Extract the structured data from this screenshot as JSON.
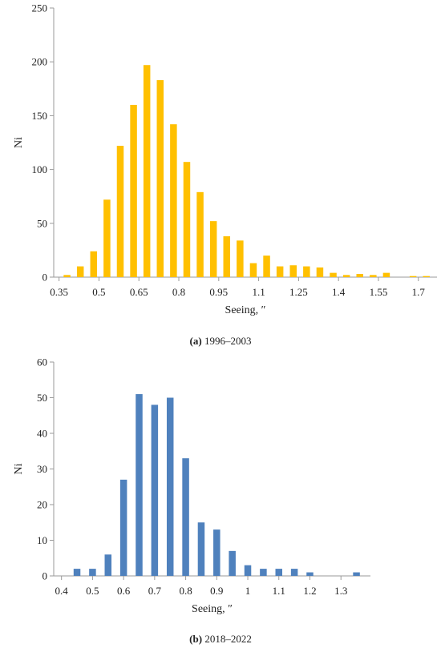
{
  "figure": {
    "caption_a_letter": "(a)",
    "caption_a_text": "1996–2003",
    "caption_b_letter": "(b)",
    "caption_b_text": "2018–2022"
  },
  "chart_data": [
    {
      "type": "bar",
      "panel": "a",
      "color": "#FFC000",
      "xlabel": "Seeing, ″",
      "ylabel": "Ni",
      "ylim": [
        0,
        250
      ],
      "yticks": [
        0,
        50,
        100,
        150,
        200,
        250
      ],
      "xlim": [
        0.33,
        1.77
      ],
      "xticks": [
        0.35,
        0.5,
        0.65,
        0.8,
        0.95,
        1.1,
        1.25,
        1.4,
        1.55,
        1.7
      ],
      "xticklabels": [
        "0.35",
        "0.5",
        "0.65",
        "0.8",
        "0.95",
        "1.1",
        "1.25",
        "1.4",
        "1.55",
        "1.7"
      ],
      "x": [
        0.38,
        0.43,
        0.48,
        0.53,
        0.58,
        0.63,
        0.68,
        0.73,
        0.78,
        0.83,
        0.88,
        0.93,
        0.98,
        1.03,
        1.08,
        1.13,
        1.18,
        1.23,
        1.28,
        1.33,
        1.38,
        1.43,
        1.48,
        1.53,
        1.58,
        1.63,
        1.68,
        1.73
      ],
      "values": [
        2,
        10,
        24,
        72,
        122,
        160,
        197,
        183,
        142,
        107,
        79,
        52,
        38,
        34,
        13,
        20,
        10,
        11,
        10,
        9,
        4,
        2,
        3,
        2,
        4,
        0,
        1,
        1
      ]
    },
    {
      "type": "bar",
      "panel": "b",
      "color": "#4F81BD",
      "xlabel": "Seeing, ″",
      "ylabel": "Ni",
      "ylim": [
        0,
        60
      ],
      "yticks": [
        0,
        10,
        20,
        30,
        40,
        50,
        60
      ],
      "xlim": [
        0.375,
        1.395
      ],
      "xticks": [
        0.4,
        0.5,
        0.6,
        0.7,
        0.8,
        0.9,
        1.0,
        1.1,
        1.2,
        1.3
      ],
      "xticklabels": [
        "0.4",
        "0.5",
        "0.6",
        "0.7",
        "0.8",
        "0.9",
        "1",
        "1.1",
        "1.2",
        "1.3"
      ],
      "x": [
        0.45,
        0.5,
        0.55,
        0.6,
        0.65,
        0.7,
        0.75,
        0.8,
        0.85,
        0.9,
        0.95,
        1.0,
        1.05,
        1.1,
        1.15,
        1.2,
        1.25,
        1.3,
        1.35
      ],
      "values": [
        2,
        2,
        6,
        27,
        51,
        48,
        50,
        33,
        15,
        13,
        7,
        3,
        2,
        2,
        2,
        1,
        0,
        0,
        1
      ]
    }
  ]
}
